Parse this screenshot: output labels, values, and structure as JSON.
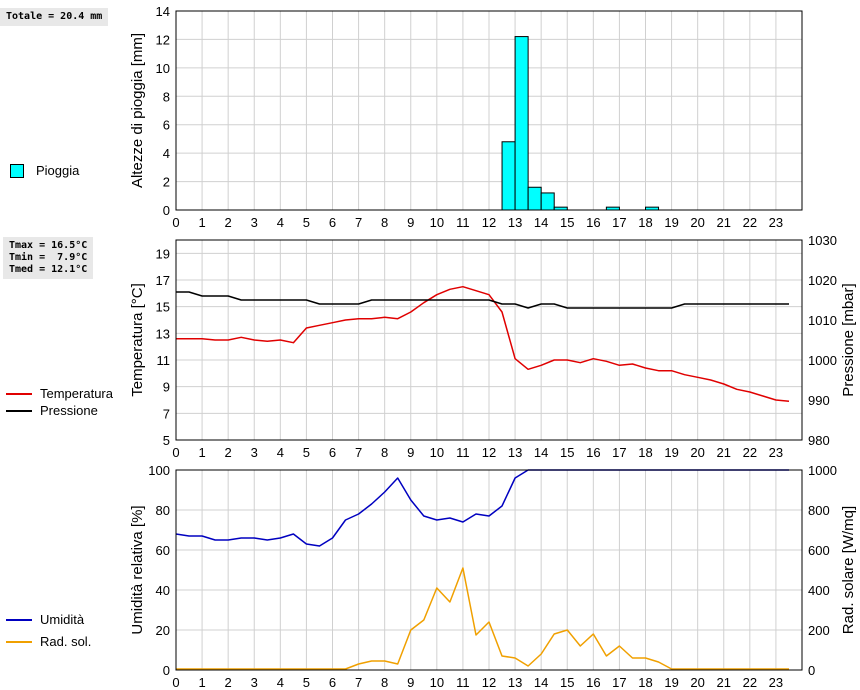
{
  "colors": {
    "rain": "#00ffff",
    "temperature": "#e00000",
    "pressure": "#000000",
    "humidity": "#0000c0",
    "radiation": "#f0a000",
    "grid": "#d0d0d0"
  },
  "summary": {
    "rain_total": "Totale = 20.4 mm",
    "temperature_stats": "Tmax = 16.5°C\nTmin =  7.9°C\nTmed = 12.1°C"
  },
  "legend": {
    "rain": "Pioggia",
    "temperature": "Temperatura",
    "pressure": "Pressione",
    "humidity": "Umidità",
    "radiation": "Rad. sol."
  },
  "chart_data": [
    {
      "type": "bar",
      "ylabel": "Altezze di pioggia [mm]",
      "xticks": [
        0,
        1,
        2,
        3,
        4,
        5,
        6,
        7,
        8,
        9,
        10,
        11,
        12,
        13,
        14,
        15,
        16,
        17,
        18,
        19,
        20,
        21,
        22,
        23
      ],
      "xlim": [
        0,
        24
      ],
      "ylim": [
        0,
        14
      ],
      "yticks": [
        0,
        2,
        4,
        6,
        8,
        10,
        12,
        14
      ],
      "series": [
        {
          "name": "Pioggia",
          "x": [
            12.75,
            13.25,
            13.75,
            14.25,
            14.75,
            16.75,
            18.25
          ],
          "values": [
            4.8,
            12.2,
            1.6,
            1.2,
            0.2,
            0.2,
            0.2
          ],
          "width": 0.5
        }
      ]
    },
    {
      "type": "line",
      "ylabel": "Temperatura [°C]",
      "y2label": "Pressione [mbar]",
      "xticks": [
        0,
        1,
        2,
        3,
        4,
        5,
        6,
        7,
        8,
        9,
        10,
        11,
        12,
        13,
        14,
        15,
        16,
        17,
        18,
        19,
        20,
        21,
        22,
        23
      ],
      "xlim": [
        0,
        24
      ],
      "ylim": [
        5,
        20
      ],
      "yticks": [
        5,
        7,
        9,
        11,
        13,
        15,
        17,
        19
      ],
      "y2lim": [
        980,
        1030
      ],
      "y2ticks": [
        980,
        990,
        1000,
        1010,
        1020,
        1030
      ],
      "series": [
        {
          "name": "Temperatura",
          "axis": "left",
          "x": [
            0,
            0.5,
            1,
            1.5,
            2,
            2.5,
            3,
            3.5,
            4,
            4.5,
            5,
            5.5,
            6,
            6.5,
            7,
            7.5,
            8,
            8.5,
            9,
            9.5,
            10,
            10.5,
            11,
            11.5,
            12,
            12.5,
            13,
            13.5,
            14,
            14.5,
            15,
            15.5,
            16,
            16.5,
            17,
            17.5,
            18,
            18.5,
            19,
            19.5,
            20,
            20.5,
            21,
            21.5,
            22,
            22.5,
            23,
            23.5
          ],
          "values": [
            12.6,
            12.6,
            12.6,
            12.5,
            12.5,
            12.7,
            12.5,
            12.4,
            12.5,
            12.3,
            13.4,
            13.6,
            13.8,
            14.0,
            14.1,
            14.1,
            14.2,
            14.1,
            14.6,
            15.3,
            15.9,
            16.3,
            16.5,
            16.2,
            15.9,
            14.6,
            11.1,
            10.3,
            10.6,
            11.0,
            11.0,
            10.8,
            11.1,
            10.9,
            10.6,
            10.7,
            10.4,
            10.2,
            10.2,
            9.9,
            9.7,
            9.5,
            9.2,
            8.8,
            8.6,
            8.3,
            8.0,
            7.9
          ]
        },
        {
          "name": "Pressione",
          "axis": "right",
          "x": [
            0,
            0.5,
            1,
            1.5,
            2,
            2.5,
            3,
            3.5,
            4,
            4.5,
            5,
            5.5,
            6,
            6.5,
            7,
            7.5,
            8,
            8.5,
            9,
            9.5,
            10,
            10.5,
            11,
            11.5,
            12,
            12.5,
            13,
            13.5,
            14,
            14.5,
            15,
            15.5,
            16,
            16.5,
            17,
            17.5,
            18,
            18.5,
            19,
            19.5,
            20,
            20.5,
            21,
            21.5,
            22,
            22.5,
            23,
            23.5
          ],
          "values": [
            1017,
            1017,
            1016,
            1016,
            1016,
            1015,
            1015,
            1015,
            1015,
            1015,
            1015,
            1014,
            1014,
            1014,
            1014,
            1015,
            1015,
            1015,
            1015,
            1015,
            1015,
            1015,
            1015,
            1015,
            1015,
            1014,
            1014,
            1013,
            1014,
            1014,
            1013,
            1013,
            1013,
            1013,
            1013,
            1013,
            1013,
            1013,
            1013,
            1014,
            1014,
            1014,
            1014,
            1014,
            1014,
            1014,
            1014,
            1014
          ]
        }
      ]
    },
    {
      "type": "line",
      "ylabel": "Umidità relativa [%]",
      "y2label": "Rad. solare [W/mq]",
      "xticks": [
        0,
        1,
        2,
        3,
        4,
        5,
        6,
        7,
        8,
        9,
        10,
        11,
        12,
        13,
        14,
        15,
        16,
        17,
        18,
        19,
        20,
        21,
        22,
        23
      ],
      "xlim": [
        0,
        24
      ],
      "ylim": [
        0,
        100
      ],
      "yticks": [
        0,
        20,
        40,
        60,
        80,
        100
      ],
      "y2lim": [
        0,
        1000
      ],
      "y2ticks": [
        0,
        200,
        400,
        600,
        800,
        1000
      ],
      "series": [
        {
          "name": "Umidità",
          "axis": "left",
          "x": [
            0,
            0.5,
            1,
            1.5,
            2,
            2.5,
            3,
            3.5,
            4,
            4.5,
            5,
            5.5,
            6,
            6.5,
            7,
            7.5,
            8,
            8.5,
            9,
            9.5,
            10,
            10.5,
            11,
            11.5,
            12,
            12.5,
            13,
            13.5,
            14,
            14.5,
            15,
            15.5,
            16,
            16.5,
            17,
            17.5,
            18,
            18.5,
            19,
            19.5,
            20,
            20.5,
            21,
            21.5,
            22,
            22.5,
            23,
            23.5
          ],
          "values": [
            68,
            67,
            67,
            65,
            65,
            66,
            66,
            65,
            66,
            68,
            63,
            62,
            66,
            75,
            78,
            83,
            89,
            96,
            85,
            77,
            75,
            76,
            74,
            78,
            77,
            82,
            96,
            100,
            100,
            100,
            100,
            100,
            100,
            100,
            100,
            100,
            100,
            100,
            100,
            100,
            100,
            100,
            100,
            100,
            100,
            100,
            100,
            100
          ]
        },
        {
          "name": "Rad. sol.",
          "axis": "right",
          "x": [
            0,
            0.5,
            1,
            1.5,
            2,
            2.5,
            3,
            3.5,
            4,
            4.5,
            5,
            5.5,
            6,
            6.5,
            7,
            7.5,
            8,
            8.5,
            9,
            9.5,
            10,
            10.5,
            11,
            11.5,
            12,
            12.5,
            13,
            13.5,
            14,
            14.5,
            15,
            15.5,
            16,
            16.5,
            17,
            17.5,
            18,
            18.5,
            19,
            19.5,
            20,
            20.5,
            21,
            21.5,
            22,
            22.5,
            23,
            23.5
          ],
          "values": [
            5,
            5,
            5,
            5,
            5,
            5,
            5,
            5,
            5,
            5,
            5,
            5,
            5,
            5,
            30,
            45,
            45,
            30,
            200,
            250,
            410,
            340,
            510,
            175,
            240,
            70,
            60,
            20,
            80,
            180,
            200,
            120,
            180,
            70,
            120,
            60,
            60,
            40,
            5,
            5,
            5,
            5,
            5,
            5,
            5,
            5,
            5,
            5
          ]
        }
      ]
    }
  ]
}
